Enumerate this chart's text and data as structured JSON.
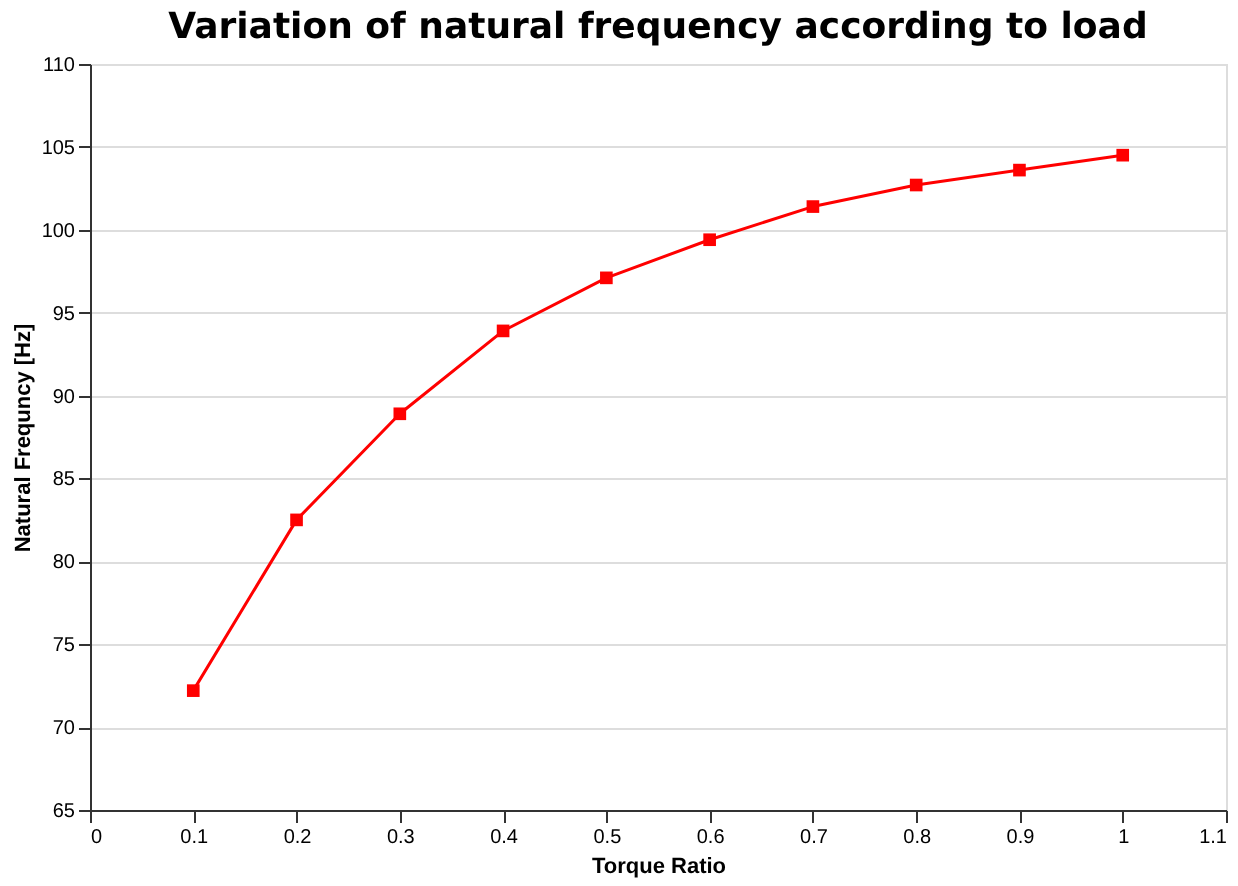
{
  "chart_data": {
    "type": "line",
    "title": "Variation of natural frequency according to load",
    "xlabel": "Torque Ratio",
    "ylabel": "Natural Frequncy [Hz]",
    "x": [
      0.1,
      0.2,
      0.3,
      0.4,
      0.5,
      0.6,
      0.7,
      0.8,
      0.9,
      1.0
    ],
    "series": [
      {
        "color": "#ff0000",
        "values": [
          72.2,
          82.5,
          88.9,
          93.9,
          97.1,
          99.4,
          101.4,
          102.7,
          103.6,
          104.5
        ]
      }
    ],
    "xlim": [
      0,
      1.1
    ],
    "xticks": [
      0,
      0.1,
      0.2,
      0.3,
      0.4,
      0.5,
      0.6,
      0.7,
      0.8,
      0.9,
      1,
      1.1
    ],
    "ylim": [
      65,
      110
    ],
    "yticks": [
      65,
      70,
      75,
      80,
      85,
      90,
      95,
      100,
      105,
      110
    ],
    "grid": "y",
    "marker": "square",
    "line_style": "solid"
  }
}
